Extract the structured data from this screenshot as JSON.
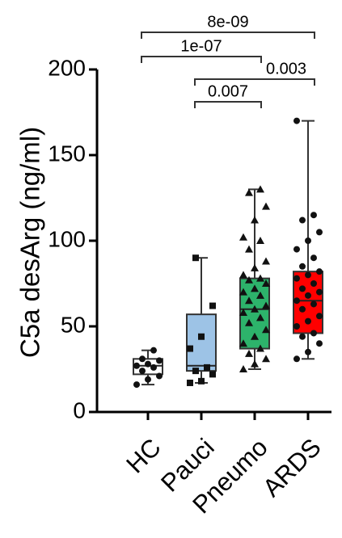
{
  "chart_data": {
    "type": "box",
    "y_label": "C5a desArg (ng/ml)",
    "ylim": [
      0,
      200
    ],
    "yticks": [
      0,
      50,
      100,
      150,
      200
    ],
    "series": [
      {
        "name": "HC",
        "color": "#ffffff",
        "marker": "circle",
        "min": 16,
        "q1": 22,
        "median": 27,
        "q3": 31,
        "max": 36,
        "points": [
          16,
          19,
          21,
          24,
          26,
          27,
          28,
          30,
          31,
          36
        ]
      },
      {
        "name": "Pauci",
        "color": "#9dc3e6",
        "marker": "square",
        "min": 17,
        "q1": 24,
        "median": 27,
        "q3": 57,
        "max": 90,
        "points": [
          17,
          18,
          22,
          24,
          26,
          37,
          44,
          62,
          90
        ]
      },
      {
        "name": "Pneumo",
        "color": "#2db36b",
        "marker": "triangle",
        "min": 25,
        "q1": 37,
        "median": 60,
        "q3": 78,
        "max": 130,
        "points": [
          25,
          28,
          31,
          34,
          37,
          40,
          44,
          48,
          52,
          55,
          58,
          60,
          62,
          65,
          68,
          70,
          72,
          75,
          77,
          78,
          80,
          84,
          88,
          95,
          100,
          102,
          112,
          120,
          128,
          130
        ]
      },
      {
        "name": "ARDS",
        "color": "#ff0000",
        "marker": "circle",
        "min": 31,
        "q1": 46,
        "median": 65,
        "q3": 82,
        "max": 170,
        "points": [
          31,
          35,
          40,
          44,
          46,
          50,
          53,
          56,
          60,
          63,
          65,
          68,
          70,
          72,
          75,
          78,
          80,
          82,
          85,
          90,
          95,
          100,
          105,
          112,
          115,
          170
        ]
      }
    ],
    "annotations": [
      {
        "label": "8e-09",
        "groups": [
          "HC",
          "ARDS"
        ]
      },
      {
        "label": "1e-07",
        "groups": [
          "HC",
          "Pneumo"
        ]
      },
      {
        "label": "0.003",
        "groups": [
          "Pauci",
          "ARDS"
        ]
      },
      {
        "label": "0.007",
        "groups": [
          "Pauci",
          "Pneumo"
        ]
      }
    ]
  }
}
